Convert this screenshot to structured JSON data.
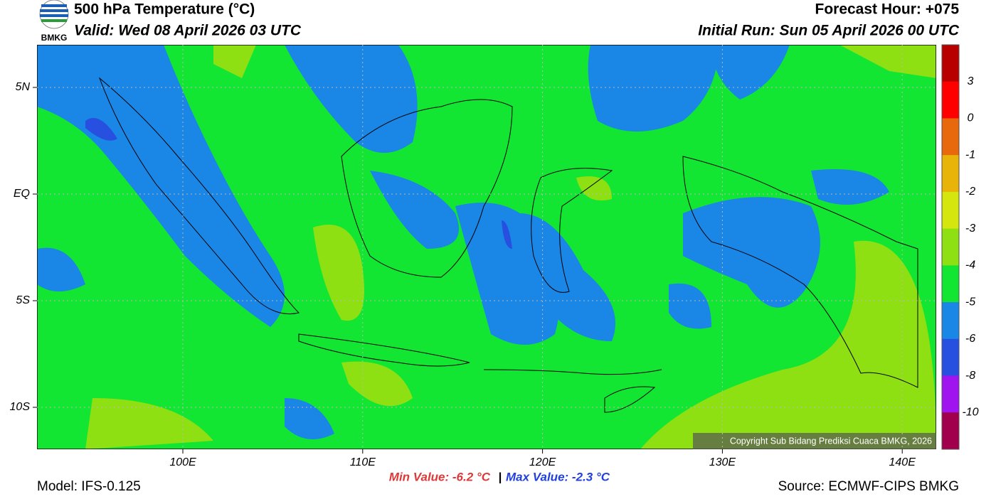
{
  "header": {
    "logo": "BMKG",
    "title": "500 hPa Temperature (°C)",
    "valid": "Valid: Wed 08 April 2026 03 UTC",
    "forecast_hour": "Forecast Hour: +075",
    "initial_run": "Initial Run: Sun 05 April 2026 00 UTC"
  },
  "map": {
    "lat_labels": [
      "5N",
      "EQ",
      "5S",
      "10S"
    ],
    "lon_labels": [
      "100E",
      "110E",
      "120E",
      "130E",
      "140E"
    ],
    "copyright": "Copyright Sub Bidang Prediksi Cuaca BMKG, 2026"
  },
  "colorbar": {
    "labels": [
      "3",
      "0",
      "-1",
      "-2",
      "-3",
      "-4",
      "-5",
      "-6",
      "-8",
      "-10"
    ],
    "colors": [
      "#b80000",
      "#ff0000",
      "#e8680c",
      "#e8b40a",
      "#d4e60e",
      "#8ee012",
      "#12e632",
      "#1a86e6",
      "#2850e0",
      "#a014f0",
      "#a0004c"
    ]
  },
  "footer": {
    "model": "Model: IFS-0.125",
    "min": "Min Value: -6.2 °C",
    "separator": "|",
    "max": "Max Value: -2.3 °C",
    "source": "Source: ECMWF-CIPS BMKG"
  }
}
